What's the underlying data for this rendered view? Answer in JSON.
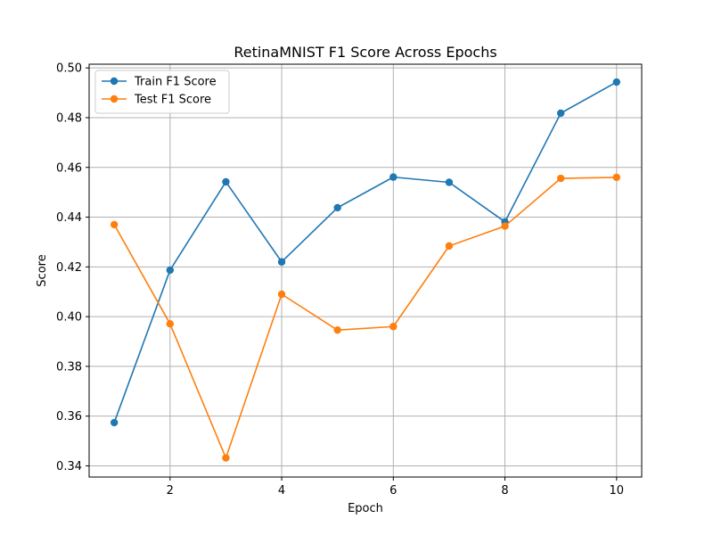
{
  "chart_data": {
    "type": "line",
    "title": "RetinaMNIST F1 Score Across Epochs",
    "xlabel": "Epoch",
    "ylabel": "Score",
    "x": [
      1,
      2,
      3,
      4,
      5,
      6,
      7,
      8,
      9,
      10
    ],
    "xlim": [
      0.55,
      10.45
    ],
    "ylim": [
      0.3355,
      0.5015
    ],
    "xticks": [
      2,
      4,
      6,
      8,
      10
    ],
    "yticks": [
      0.34,
      0.36,
      0.38,
      0.4,
      0.42,
      0.44,
      0.46,
      0.48,
      0.5
    ],
    "ytick_labels": [
      "0.34",
      "0.36",
      "0.38",
      "0.40",
      "0.42",
      "0.44",
      "0.46",
      "0.48",
      "0.50"
    ],
    "grid": true,
    "legend_position": "top-left",
    "series": [
      {
        "name": "Train F1 Score",
        "color": "#1f77b4",
        "marker": "circle",
        "values": [
          0.3574,
          0.4187,
          0.4542,
          0.422,
          0.4438,
          0.4561,
          0.454,
          0.4381,
          0.4818,
          0.4943
        ]
      },
      {
        "name": "Test F1 Score",
        "color": "#ff7f0e",
        "marker": "circle",
        "values": [
          0.437,
          0.3971,
          0.3432,
          0.409,
          0.3946,
          0.396,
          0.4284,
          0.4364,
          0.4556,
          0.456
        ]
      }
    ]
  }
}
